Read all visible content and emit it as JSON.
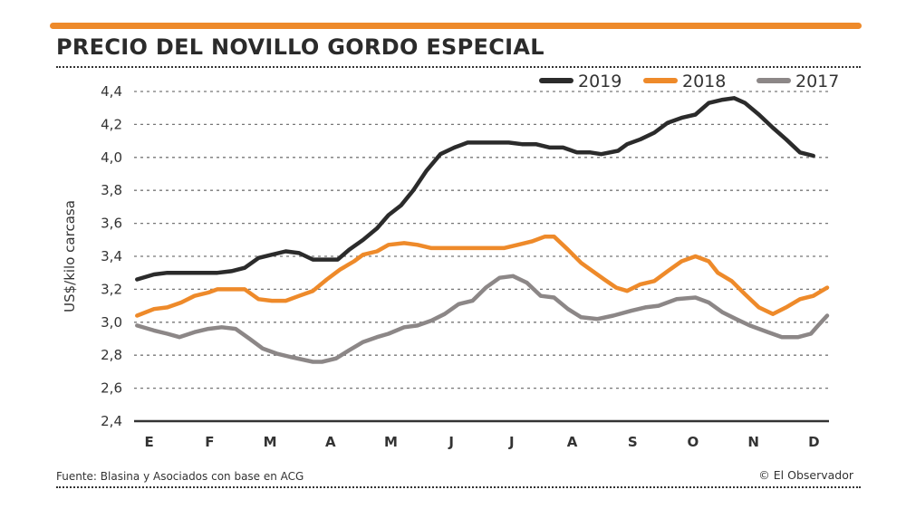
{
  "title": "PRECIO DEL NOVILLO GORDO ESPECIAL",
  "footer": {
    "source": "Fuente: Blasina y Asociados con base en ACG",
    "credit": "© El Observador"
  },
  "colors": {
    "accent": "#ee8a2a",
    "2019": "#2b2b2b",
    "2018": "#ee8a2a",
    "2017": "#8c8787"
  },
  "chart_data": {
    "type": "line",
    "title": "PRECIO DEL NOVILLO GORDO ESPECIAL",
    "ylabel": "US$/kilo carcasa",
    "xlabel": "",
    "categories": [
      "E",
      "F",
      "M",
      "A",
      "M",
      "J",
      "J",
      "A",
      "S",
      "O",
      "N",
      "D"
    ],
    "xlim": [
      -0.25,
      11.25
    ],
    "ylim": [
      2.4,
      4.4
    ],
    "yticks": [
      "2,4",
      "2,6",
      "2,8",
      "3,0",
      "3,2",
      "3,4",
      "3,6",
      "3,8",
      "4,0",
      "4,2",
      "4,4"
    ],
    "grid": true,
    "legend": "top-right",
    "series": [
      {
        "name": "2019",
        "color": "#2b2b2b",
        "points": [
          [
            -0.2,
            3.26
          ],
          [
            0.08,
            3.29
          ],
          [
            0.3,
            3.3
          ],
          [
            1.13,
            3.3
          ],
          [
            1.36,
            3.31
          ],
          [
            1.58,
            3.33
          ],
          [
            1.81,
            3.39
          ],
          [
            2.03,
            3.41
          ],
          [
            2.26,
            3.43
          ],
          [
            2.48,
            3.42
          ],
          [
            2.71,
            3.38
          ],
          [
            3.12,
            3.38
          ],
          [
            3.31,
            3.44
          ],
          [
            3.54,
            3.5
          ],
          [
            3.77,
            3.57
          ],
          [
            3.96,
            3.65
          ],
          [
            4.17,
            3.71
          ],
          [
            4.37,
            3.8
          ],
          [
            4.59,
            3.92
          ],
          [
            4.82,
            4.02
          ],
          [
            5.05,
            4.06
          ],
          [
            5.27,
            4.09
          ],
          [
            5.95,
            4.09
          ],
          [
            6.17,
            4.08
          ],
          [
            6.4,
            4.08
          ],
          [
            6.63,
            4.06
          ],
          [
            6.85,
            4.06
          ],
          [
            7.08,
            4.03
          ],
          [
            7.3,
            4.03
          ],
          [
            7.48,
            4.02
          ],
          [
            7.76,
            4.04
          ],
          [
            7.91,
            4.08
          ],
          [
            8.13,
            4.11
          ],
          [
            8.36,
            4.15
          ],
          [
            8.58,
            4.21
          ],
          [
            8.81,
            4.24
          ],
          [
            9.04,
            4.26
          ],
          [
            9.26,
            4.33
          ],
          [
            9.49,
            4.35
          ],
          [
            9.68,
            4.36
          ],
          [
            9.86,
            4.33
          ],
          [
            10.09,
            4.26
          ],
          [
            10.32,
            4.18
          ],
          [
            10.54,
            4.11
          ],
          [
            10.77,
            4.03
          ],
          [
            10.99,
            4.01
          ]
        ]
      },
      {
        "name": "2018",
        "color": "#ee8a2a",
        "points": [
          [
            -0.2,
            3.04
          ],
          [
            0.08,
            3.08
          ],
          [
            0.3,
            3.09
          ],
          [
            0.53,
            3.12
          ],
          [
            0.75,
            3.16
          ],
          [
            0.98,
            3.18
          ],
          [
            1.13,
            3.2
          ],
          [
            1.58,
            3.2
          ],
          [
            1.81,
            3.14
          ],
          [
            2.03,
            3.13
          ],
          [
            2.26,
            3.13
          ],
          [
            2.48,
            3.16
          ],
          [
            2.71,
            3.19
          ],
          [
            2.94,
            3.26
          ],
          [
            3.16,
            3.32
          ],
          [
            3.39,
            3.37
          ],
          [
            3.54,
            3.41
          ],
          [
            3.77,
            3.43
          ],
          [
            3.96,
            3.47
          ],
          [
            4.22,
            3.48
          ],
          [
            4.44,
            3.47
          ],
          [
            4.67,
            3.45
          ],
          [
            5.87,
            3.45
          ],
          [
            6.1,
            3.47
          ],
          [
            6.33,
            3.49
          ],
          [
            6.55,
            3.52
          ],
          [
            6.7,
            3.52
          ],
          [
            6.93,
            3.44
          ],
          [
            7.15,
            3.36
          ],
          [
            7.3,
            3.32
          ],
          [
            7.53,
            3.26
          ],
          [
            7.73,
            3.21
          ],
          [
            7.91,
            3.19
          ],
          [
            8.13,
            3.23
          ],
          [
            8.36,
            3.25
          ],
          [
            8.58,
            3.31
          ],
          [
            8.81,
            3.37
          ],
          [
            9.04,
            3.4
          ],
          [
            9.26,
            3.37
          ],
          [
            9.41,
            3.3
          ],
          [
            9.64,
            3.25
          ],
          [
            9.86,
            3.17
          ],
          [
            10.09,
            3.09
          ],
          [
            10.32,
            3.05
          ],
          [
            10.54,
            3.09
          ],
          [
            10.77,
            3.14
          ],
          [
            10.99,
            3.16
          ],
          [
            11.22,
            3.21
          ]
        ]
      },
      {
        "name": "2017",
        "color": "#8c8787",
        "points": [
          [
            -0.2,
            2.98
          ],
          [
            0.08,
            2.95
          ],
          [
            0.3,
            2.93
          ],
          [
            0.5,
            2.91
          ],
          [
            0.75,
            2.94
          ],
          [
            0.98,
            2.96
          ],
          [
            1.2,
            2.97
          ],
          [
            1.43,
            2.96
          ],
          [
            1.66,
            2.9
          ],
          [
            1.88,
            2.84
          ],
          [
            2.11,
            2.81
          ],
          [
            2.33,
            2.79
          ],
          [
            2.71,
            2.76
          ],
          [
            2.86,
            2.76
          ],
          [
            3.09,
            2.78
          ],
          [
            3.31,
            2.83
          ],
          [
            3.54,
            2.88
          ],
          [
            3.77,
            2.91
          ],
          [
            3.96,
            2.93
          ],
          [
            4.22,
            2.97
          ],
          [
            4.44,
            2.98
          ],
          [
            4.67,
            3.01
          ],
          [
            4.89,
            3.05
          ],
          [
            5.12,
            3.11
          ],
          [
            5.35,
            3.13
          ],
          [
            5.57,
            3.21
          ],
          [
            5.8,
            3.27
          ],
          [
            6.02,
            3.28
          ],
          [
            6.25,
            3.24
          ],
          [
            6.48,
            3.16
          ],
          [
            6.7,
            3.15
          ],
          [
            6.93,
            3.08
          ],
          [
            7.15,
            3.03
          ],
          [
            7.42,
            3.02
          ],
          [
            7.68,
            3.04
          ],
          [
            7.98,
            3.07
          ],
          [
            8.21,
            3.09
          ],
          [
            8.43,
            3.1
          ],
          [
            8.73,
            3.14
          ],
          [
            9.04,
            3.15
          ],
          [
            9.26,
            3.12
          ],
          [
            9.49,
            3.06
          ],
          [
            9.71,
            3.02
          ],
          [
            9.94,
            2.98
          ],
          [
            10.24,
            2.94
          ],
          [
            10.47,
            2.91
          ],
          [
            10.74,
            2.91
          ],
          [
            10.95,
            2.93
          ],
          [
            11.07,
            2.98
          ],
          [
            11.22,
            3.04
          ]
        ]
      }
    ]
  }
}
